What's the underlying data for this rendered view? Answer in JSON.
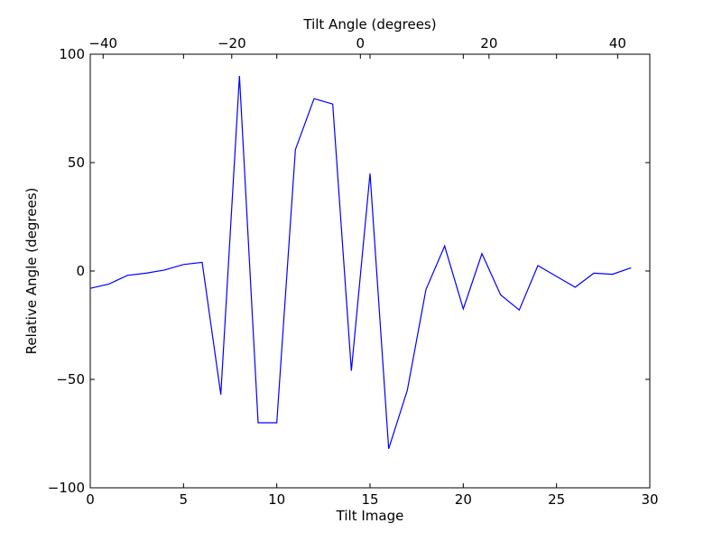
{
  "chart_data": {
    "type": "line",
    "title": "",
    "xlabel": "Tilt Image",
    "ylabel": "Relative Angle (degrees)",
    "x2label": "Tilt Angle (degrees)",
    "xlim": [
      0,
      30
    ],
    "ylim": [
      -100,
      100
    ],
    "x2lim": [
      -42,
      45
    ],
    "xticks": [
      0,
      5,
      10,
      15,
      20,
      25,
      30
    ],
    "yticks": [
      -100,
      -50,
      0,
      50,
      100
    ],
    "x2ticks": [
      -40,
      -20,
      0,
      20,
      40
    ],
    "grid": false,
    "line_color": "#0000ff",
    "series": [
      {
        "x": [
          0,
          1,
          2,
          3,
          4,
          5,
          6,
          7,
          8,
          9,
          10,
          11,
          12,
          13,
          14,
          15,
          16,
          17,
          18,
          19,
          20,
          21,
          22,
          23,
          24,
          25,
          26,
          27,
          28,
          29
        ],
        "values": [
          -8,
          -6,
          -2,
          -1,
          0.5,
          3,
          4,
          -57,
          90,
          -70,
          -70,
          56,
          79.5,
          77,
          -46,
          45,
          -82,
          -55,
          -8.5,
          11.5,
          -17.5,
          8,
          -11,
          -18,
          2.5,
          -2.5,
          -7.5,
          -1,
          -1.5,
          1.5
        ]
      }
    ]
  }
}
